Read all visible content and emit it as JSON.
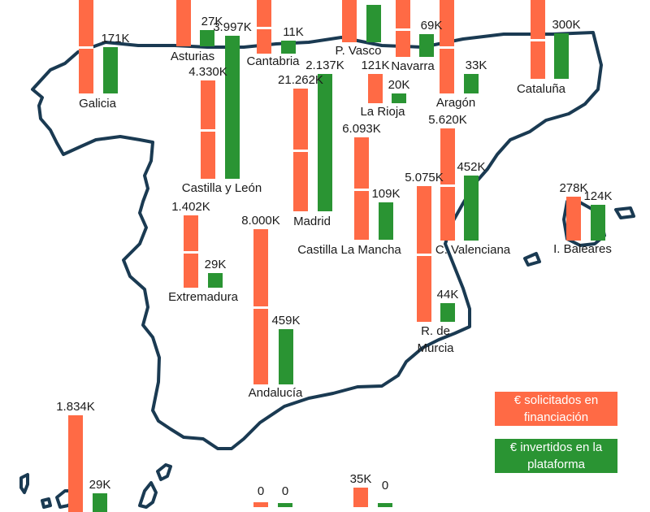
{
  "chart_data": {
    "type": "bar",
    "title": "",
    "colors": {
      "solicitados": "#ff6a45",
      "invertidos": "#2a9433",
      "outline": "#1a3a52"
    },
    "legend": [
      {
        "key": "solicitados",
        "label": "€ solicitados en financiación"
      },
      {
        "key": "invertidos",
        "label": "€ invertidos en la plataforma"
      }
    ],
    "regions": [
      {
        "name": "Galicia",
        "solicitados": 0,
        "invertidos": 171,
        "solicitados_label": "",
        "invertidos_label": "171K"
      },
      {
        "name": "Asturias",
        "solicitados": 0,
        "invertidos": 27,
        "solicitados_label": "",
        "invertidos_label": "27K"
      },
      {
        "name": "Cantabria",
        "solicitados": 0,
        "invertidos": 11,
        "solicitados_label": "",
        "invertidos_label": "11K"
      },
      {
        "name": "P. Vasco",
        "solicitados": 0,
        "invertidos": 0,
        "solicitados_label": "",
        "invertidos_label": ""
      },
      {
        "name": "Navarra",
        "solicitados": 0,
        "invertidos": 69,
        "solicitados_label": "",
        "invertidos_label": "69K"
      },
      {
        "name": "Aragón",
        "solicitados": 0,
        "invertidos": 33,
        "solicitados_label": "",
        "invertidos_label": "33K"
      },
      {
        "name": "Cataluña",
        "solicitados": 0,
        "invertidos": 300,
        "solicitados_label": "",
        "invertidos_label": "300K"
      },
      {
        "name": "La Rioja",
        "solicitados": 121,
        "invertidos": 20,
        "solicitados_label": "121K",
        "invertidos_label": "20K"
      },
      {
        "name": "Castilla y León",
        "solicitados": 4330,
        "invertidos": 3997,
        "solicitados_label": "4.330K",
        "invertidos_label": "3.997K"
      },
      {
        "name": "Madrid",
        "solicitados": 21262,
        "invertidos": 2137,
        "solicitados_label": "21.262K",
        "invertidos_label": "2.137K"
      },
      {
        "name": "Castilla La Mancha",
        "solicitados": 6093,
        "invertidos": 109,
        "solicitados_label": "6.093K",
        "invertidos_label": "109K"
      },
      {
        "name": "C. Valenciana",
        "solicitados": 5620,
        "invertidos": 452,
        "solicitados_label": "5.620K",
        "invertidos_label": "452K"
      },
      {
        "name": "I. Baleares",
        "solicitados": 278,
        "invertidos": 124,
        "solicitados_label": "278K",
        "invertidos_label": "124K"
      },
      {
        "name": "Extremadura",
        "solicitados": 1402,
        "invertidos": 29,
        "solicitados_label": "1.402K",
        "invertidos_label": "29K"
      },
      {
        "name": "Andalucía",
        "solicitados": 8000,
        "invertidos": 459,
        "solicitados_label": "8.000K",
        "invertidos_label": "459K"
      },
      {
        "name": "R. de Murcia",
        "solicitados": 5075,
        "invertidos": 44,
        "solicitados_label": "5.075K",
        "invertidos_label": "44K"
      },
      {
        "name": "",
        "solicitados": 1834,
        "invertidos": 29,
        "solicitados_label": "1.834K",
        "invertidos_label": "29K"
      },
      {
        "name": "",
        "solicitados": 0,
        "invertidos": 0,
        "solicitados_label": "0",
        "invertidos_label": "0"
      },
      {
        "name": "",
        "solicitados": 35,
        "invertidos": 0,
        "solicitados_label": "35K",
        "invertidos_label": "0"
      }
    ]
  }
}
